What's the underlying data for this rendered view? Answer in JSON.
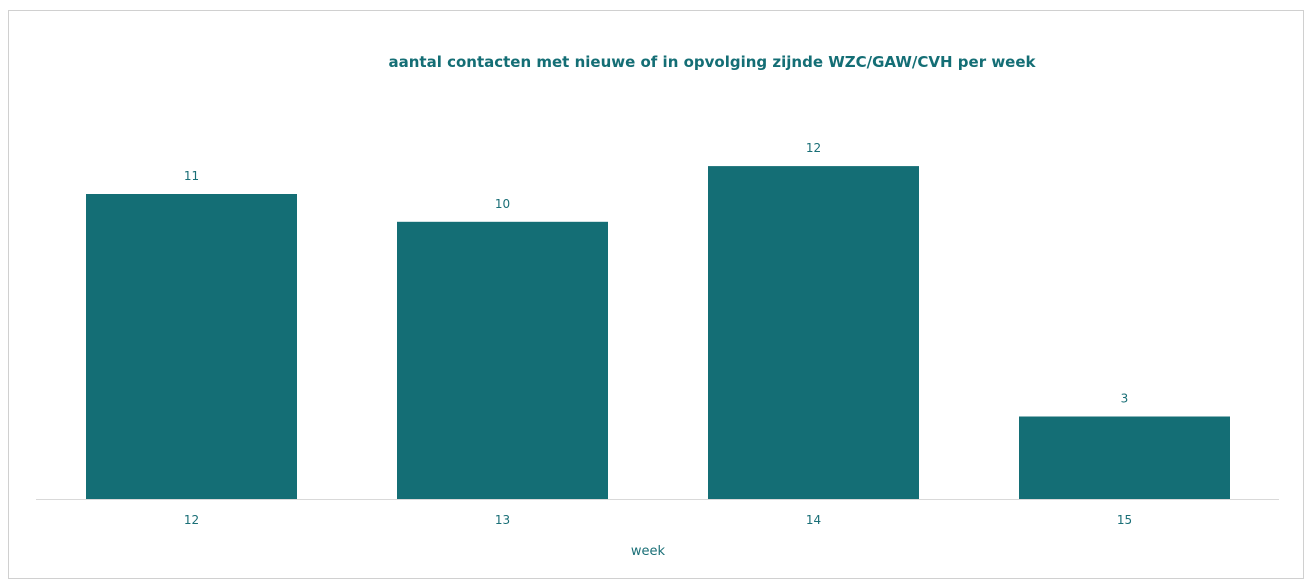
{
  "chart_data": {
    "type": "bar",
    "title": "aantal contacten met nieuwe of in opvolging zijnde WZC/GAW/CVH per week",
    "xlabel": "week",
    "ylabel": "",
    "categories": [
      "12",
      "13",
      "14",
      "15"
    ],
    "values": [
      11,
      10,
      12,
      3
    ],
    "ylim": [
      0,
      12.4
    ],
    "grid": false,
    "legend": "none",
    "data_labels": true
  },
  "colors": {
    "bar": "#146e75",
    "text": "#1a6f77",
    "axis": "#d9d9d9",
    "frame": "#d0d0d0"
  }
}
